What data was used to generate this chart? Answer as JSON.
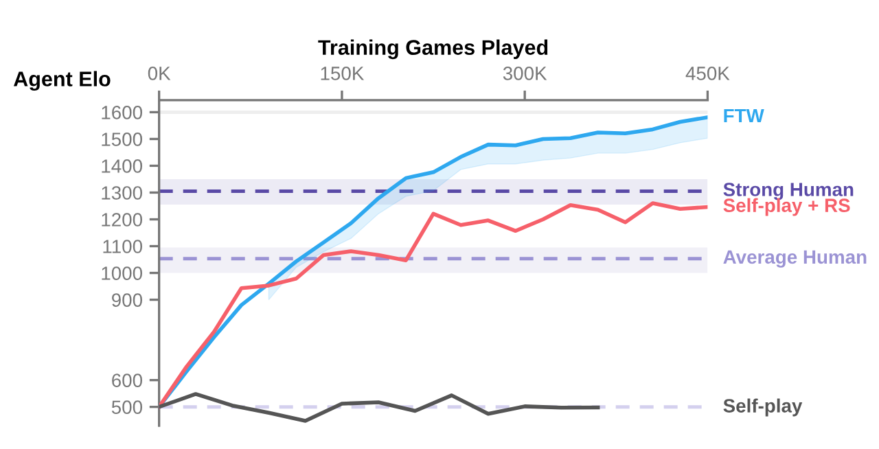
{
  "chart_data": {
    "type": "line",
    "xlabel": "Training Games Played",
    "ylabel": "Agent Elo",
    "x": [
      0,
      22.5,
      45,
      67.5,
      90,
      112.5,
      135,
      157.5,
      180,
      202.5,
      225,
      247.5,
      270,
      292.5,
      315,
      337.5,
      360,
      382.5,
      405,
      427.5,
      450
    ],
    "series": [
      {
        "name": "FTW",
        "color": "#2ea8ef",
        "values": [
          500,
          632,
          760,
          880,
          960,
          1043,
          1114,
          1186,
          1279,
          1354,
          1376,
          1433,
          1479,
          1476,
          1500,
          1503,
          1524,
          1521,
          1536,
          1564,
          1581
        ],
        "lower": [
          null,
          null,
          null,
          null,
          900,
          1021,
          1079,
          1129,
          1221,
          1286,
          1307,
          1386,
          1407,
          1407,
          1421,
          1429,
          1447,
          1447,
          1461,
          1486,
          1503
        ],
        "upper": [
          null,
          null,
          null,
          null,
          960,
          1043,
          1114,
          1186,
          1279,
          1354,
          1376,
          1433,
          1479,
          1476,
          1500,
          1503,
          1524,
          1521,
          1536,
          1564,
          1581
        ]
      },
      {
        "name": "Self-play + RS",
        "color": "#f6606a",
        "values": [
          500,
          650,
          780,
          943,
          953,
          979,
          1067,
          1081,
          1067,
          1047,
          1221,
          1179,
          1196,
          1157,
          1200,
          1253,
          1236,
          1189,
          1260,
          1239,
          1246
        ]
      },
      {
        "name": "Self-play",
        "color": "#555555",
        "x": [
          0,
          30,
          60,
          90,
          120,
          150,
          180,
          210,
          240,
          270,
          300,
          330,
          360
        ],
        "values": [
          500,
          548,
          505,
          478,
          448,
          512,
          517,
          485,
          543,
          474,
          502,
          497,
          498
        ]
      }
    ],
    "ref_lines": [
      {
        "axis": "y",
        "value": 1305,
        "label": "Strong Human",
        "color": "#5a4aa6",
        "line_style": "dashed"
      },
      {
        "axis": "y",
        "value": 1053,
        "label": "Average Human",
        "color": "#9b93d4",
        "line_style": "dashed"
      },
      {
        "axis": "y",
        "value": 500,
        "color": "#d4d0ee",
        "line_style": "dashed"
      },
      {
        "axis": "y",
        "value": 1600,
        "color": "#eeeeee",
        "line_style": "solid"
      }
    ],
    "bands": [
      {
        "axis": "y",
        "from": 1255,
        "to": 1350,
        "color": "#ecebf5"
      },
      {
        "axis": "y",
        "from": 1000,
        "to": 1095,
        "color": "#f1f0f7"
      }
    ],
    "xlim": [
      0,
      450
    ],
    "xticks": [
      {
        "value": 0,
        "label": "0K"
      },
      {
        "value": 150,
        "label": "150K"
      },
      {
        "value": 300,
        "label": "300K"
      },
      {
        "value": 450,
        "label": "450K"
      }
    ],
    "ylim": [
      430,
      1645
    ],
    "yticks": [
      500,
      600,
      900,
      1000,
      1100,
      1200,
      1300,
      1400,
      1500,
      1600
    ]
  }
}
